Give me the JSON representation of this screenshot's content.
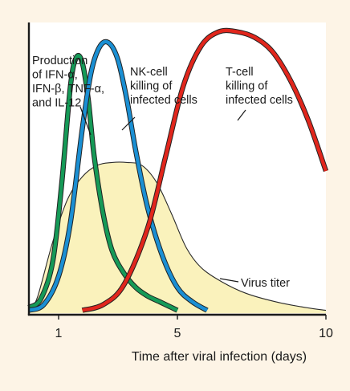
{
  "colors": {
    "background": "#fdf4e6",
    "plot_background": "#ffffff",
    "virus_fill": "#faf2bc",
    "ifn_curve": "#159a57",
    "nk_curve": "#1a8fd3",
    "tcell_curve": "#e1261c",
    "axis": "#1a1a1a"
  },
  "chart_data": {
    "type": "line",
    "title": "",
    "xlabel": "Time  after  viral  infection  (days)",
    "ylabel": "",
    "xlim": [
      0,
      10
    ],
    "ylim": [
      0,
      1
    ],
    "x_ticks": [
      {
        "value": 1,
        "label": "1"
      },
      {
        "value": 5,
        "label": "5"
      },
      {
        "value": 10,
        "label": "10"
      }
    ],
    "grid": false,
    "series": [
      {
        "id": "virus",
        "style": "area",
        "label_lines": [
          "Virus titer"
        ],
        "x": [
          0,
          0.3,
          0.8,
          1.3,
          1.8,
          2.3,
          2.8,
          3.3,
          3.8,
          4.3,
          4.8,
          5.3,
          5.8,
          6.5,
          7.3,
          8.3,
          9.3,
          10
        ],
        "values": [
          0,
          0.06,
          0.25,
          0.4,
          0.48,
          0.52,
          0.53,
          0.53,
          0.52,
          0.46,
          0.35,
          0.23,
          0.16,
          0.11,
          0.07,
          0.04,
          0.02,
          0.01
        ]
      },
      {
        "id": "ifn",
        "style": "line",
        "label_lines": [
          "Production",
          "of IFN-α,",
          "IFN-β, TNF-α,",
          "and IL-12"
        ],
        "x": [
          0,
          0.4,
          0.8,
          1.1,
          1.4,
          1.6,
          1.8,
          2.0,
          2.2,
          2.5,
          2.8,
          3.2,
          3.6,
          4.0,
          4.4,
          4.8,
          5.0
        ],
        "values": [
          0.02,
          0.05,
          0.18,
          0.45,
          0.8,
          0.9,
          0.88,
          0.75,
          0.55,
          0.35,
          0.22,
          0.14,
          0.09,
          0.06,
          0.04,
          0.02,
          0.01
        ]
      },
      {
        "id": "nk",
        "style": "line",
        "label_lines": [
          "NK-cell",
          "killing of",
          "infected cells"
        ],
        "x": [
          0,
          0.5,
          1.0,
          1.4,
          1.8,
          2.1,
          2.4,
          2.7,
          3.0,
          3.3,
          3.6,
          4.0,
          4.5,
          5.0,
          5.5,
          6.0
        ],
        "values": [
          0.01,
          0.03,
          0.13,
          0.32,
          0.65,
          0.85,
          0.94,
          0.95,
          0.89,
          0.75,
          0.57,
          0.37,
          0.2,
          0.09,
          0.04,
          0.01
        ]
      },
      {
        "id": "tcell",
        "style": "line",
        "label_lines": [
          "T-cell",
          "killing of",
          "infected cells"
        ],
        "x": [
          1.8,
          2.5,
          3.2,
          4.0,
          4.6,
          5.2,
          5.8,
          6.4,
          7.0,
          7.6,
          8.2,
          8.8,
          9.4,
          10
        ],
        "values": [
          0.01,
          0.03,
          0.1,
          0.3,
          0.55,
          0.8,
          0.94,
          0.99,
          0.99,
          0.97,
          0.92,
          0.82,
          0.68,
          0.5
        ]
      }
    ]
  }
}
